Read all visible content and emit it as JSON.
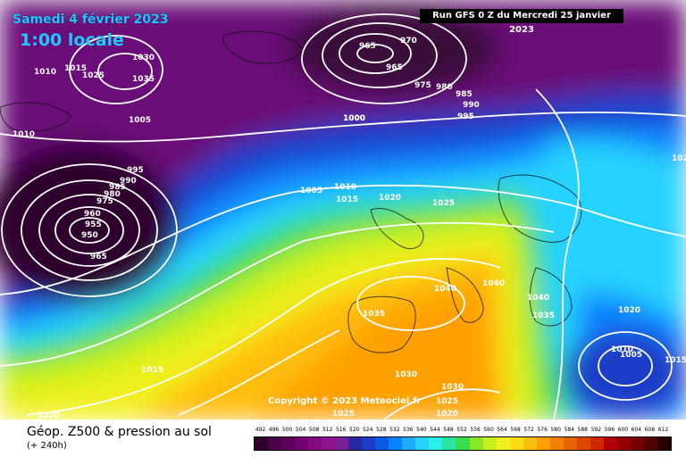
{
  "header": {
    "date": "Samedi 4 février 2023",
    "time": "1:00 locale",
    "run": "Run GFS 0 Z du Mercredi 25 janvier 2023"
  },
  "copyright": "Copyright © 2023 Meteociel.fr",
  "footer": {
    "title": "Géop. Z500 & pression au sol",
    "subtitle": "(+ 240h)"
  },
  "scale": {
    "ticks": [
      "492",
      "496",
      "500",
      "504",
      "508",
      "512",
      "516",
      "520",
      "524",
      "528",
      "532",
      "536",
      "540",
      "544",
      "548",
      "552",
      "556",
      "560",
      "564",
      "568",
      "572",
      "576",
      "580",
      "584",
      "588",
      "592",
      "596",
      "600",
      "604",
      "608",
      "612"
    ],
    "colors": [
      "#2e002e",
      "#4a004a",
      "#5c005c",
      "#700070",
      "#840a84",
      "#8c148c",
      "#7a1e96",
      "#2828a0",
      "#1e3cc8",
      "#0a5ae6",
      "#0a82ff",
      "#1eaaff",
      "#28d2ff",
      "#28f0e6",
      "#28e6a0",
      "#3cdc50",
      "#8ce628",
      "#c8f01e",
      "#f0f01e",
      "#ffdc14",
      "#ffbe0a",
      "#ffa000",
      "#f08200",
      "#e66400",
      "#dc4600",
      "#d22800",
      "#b40000",
      "#960000",
      "#780000",
      "#500000",
      "#280000"
    ]
  },
  "isobar_labels": [
    {
      "text": "1010"
    },
    {
      "text": "1030"
    },
    {
      "text": "1035"
    },
    {
      "text": "1010"
    },
    {
      "text": "1015"
    },
    {
      "text": "1025"
    },
    {
      "text": "1005"
    },
    {
      "text": "970"
    },
    {
      "text": "965"
    },
    {
      "text": "965"
    },
    {
      "text": "975"
    },
    {
      "text": "980"
    },
    {
      "text": "985"
    },
    {
      "text": "990"
    },
    {
      "text": "995"
    },
    {
      "text": "1000"
    },
    {
      "text": "995"
    },
    {
      "text": "990"
    },
    {
      "text": "985"
    },
    {
      "text": "980"
    },
    {
      "text": "975"
    },
    {
      "text": "960"
    },
    {
      "text": "955"
    },
    {
      "text": "950"
    },
    {
      "text": "965"
    },
    {
      "text": "1005"
    },
    {
      "text": "1010"
    },
    {
      "text": "1015"
    },
    {
      "text": "1020"
    },
    {
      "text": "1025"
    },
    {
      "text": "1040"
    },
    {
      "text": "1040"
    },
    {
      "text": "1040"
    },
    {
      "text": "1035"
    },
    {
      "text": "1035"
    },
    {
      "text": "1030"
    },
    {
      "text": "1030"
    },
    {
      "text": "1025"
    },
    {
      "text": "1025"
    },
    {
      "text": "1020"
    },
    {
      "text": "1015"
    },
    {
      "text": "1020"
    },
    {
      "text": "1020"
    },
    {
      "text": "1010"
    },
    {
      "text": "1005"
    },
    {
      "text": "1015"
    },
    {
      "text": "102"
    },
    {
      "text": "1000"
    }
  ]
}
